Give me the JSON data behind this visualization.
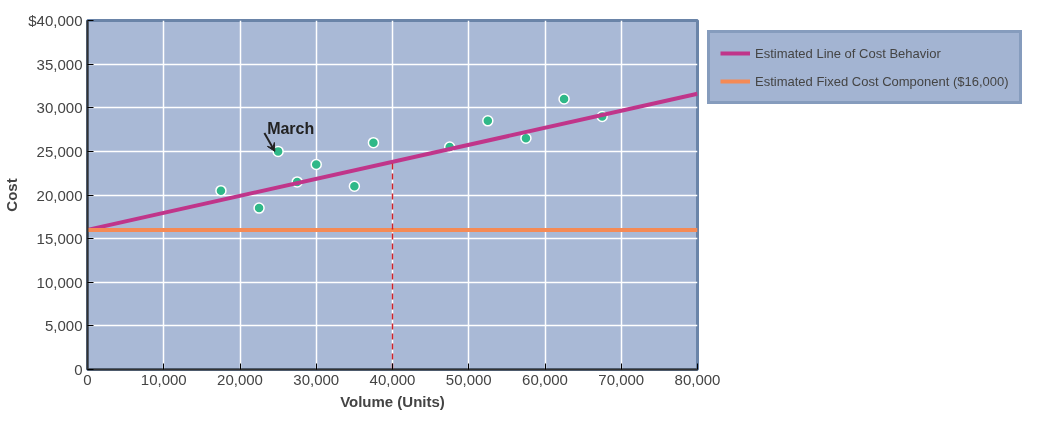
{
  "chart_data": {
    "type": "scatter",
    "xlabel": "Volume (Units)",
    "ylabel": "Cost",
    "xlim": [
      0,
      80000
    ],
    "ylim": [
      0,
      40000
    ],
    "xticks": [
      {
        "value": 0,
        "label": "0"
      },
      {
        "value": 10000,
        "label": "10,000"
      },
      {
        "value": 20000,
        "label": "20,000"
      },
      {
        "value": 30000,
        "label": "30,000"
      },
      {
        "value": 40000,
        "label": "40,000"
      },
      {
        "value": 50000,
        "label": "50,000"
      },
      {
        "value": 60000,
        "label": "60,000"
      },
      {
        "value": 70000,
        "label": "70,000"
      },
      {
        "value": 80000,
        "label": "80,000"
      }
    ],
    "yticks": [
      {
        "value": 0,
        "label": "0"
      },
      {
        "value": 5000,
        "label": "5,000"
      },
      {
        "value": 10000,
        "label": "10,000"
      },
      {
        "value": 15000,
        "label": "15,000"
      },
      {
        "value": 20000,
        "label": "20,000"
      },
      {
        "value": 25000,
        "label": "25,000"
      },
      {
        "value": 30000,
        "label": "30,000"
      },
      {
        "value": 35000,
        "label": "35,000"
      },
      {
        "value": 40000,
        "label": "$40,000"
      }
    ],
    "grid": true,
    "legend": "top right",
    "series": [
      {
        "marker": "circle",
        "color": "#2fb888",
        "x": [
          17500,
          22500,
          25000,
          27500,
          30000,
          35000,
          37500,
          47500,
          52500,
          57500,
          62500,
          67500
        ],
        "values": [
          20500,
          18500,
          25000,
          21500,
          23500,
          21000,
          26000,
          25500,
          28500,
          26500,
          31000,
          29000
        ]
      },
      {
        "type": "line",
        "name": "Estimated Line of Cost Behavior",
        "color": "#c0358a",
        "x": [
          0,
          80000
        ],
        "values": [
          16000,
          31600
        ]
      },
      {
        "type": "line",
        "name": "Estimated Fixed Cost Component ($16,000)",
        "color": "#f58a55",
        "x": [
          0,
          80000
        ],
        "values": [
          16000,
          16000
        ]
      }
    ],
    "ref_lines": [
      {
        "axis": "x",
        "value": 40000,
        "color": "#d0202a",
        "line_style": "dashed"
      }
    ],
    "annotations": [
      {
        "text": "March",
        "x": 25000,
        "y": 25000
      }
    ]
  }
}
